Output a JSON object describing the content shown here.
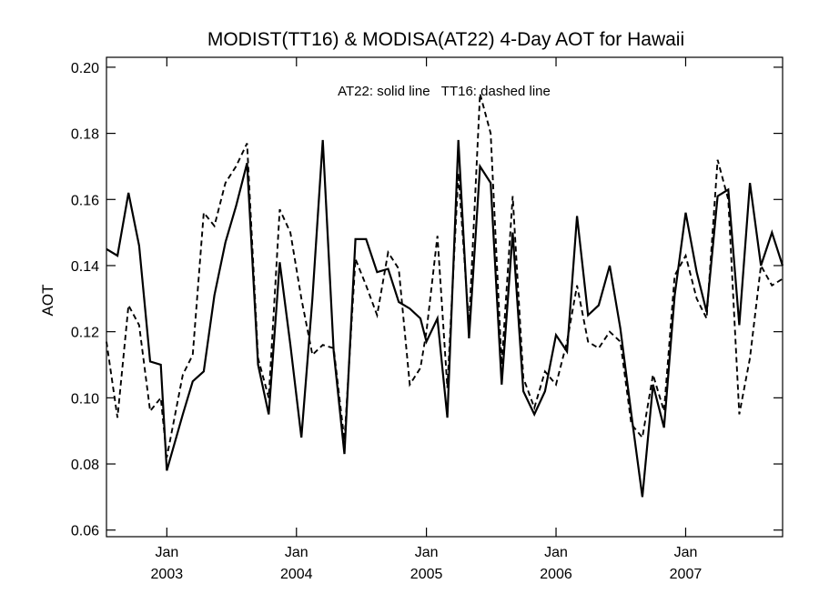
{
  "chart_data": {
    "type": "line",
    "title": "MODIST(TT16) & MODISA(AT22) 4-Day AOT for Hawaii",
    "xlabel": "",
    "ylabel": "AOT",
    "annotation": "AT22: solid line   TT16: dashed line",
    "xlim": [
      "2002-07-15",
      "2007-10-01"
    ],
    "ylim": [
      0.058,
      0.203
    ],
    "y_ticks": [
      0.06,
      0.08,
      0.1,
      0.12,
      0.14,
      0.16,
      0.18,
      0.2
    ],
    "y_tick_labels": [
      "0.06",
      "0.08",
      "0.10",
      "0.12",
      "0.14",
      "0.16",
      "0.18",
      "0.20"
    ],
    "x_ticks": [
      {
        "date": "2003-01-01",
        "month": "Jan",
        "year": "2003"
      },
      {
        "date": "2004-01-01",
        "month": "Jan",
        "year": "2004"
      },
      {
        "date": "2005-01-01",
        "month": "Jan",
        "year": "2005"
      },
      {
        "date": "2006-01-01",
        "month": "Jan",
        "year": "2006"
      },
      {
        "date": "2007-01-01",
        "month": "Jan",
        "year": "2007"
      }
    ],
    "grid": false,
    "series": [
      {
        "style": "solid",
        "x": [
          "2002-07-15",
          "2002-08-15",
          "2002-09-15",
          "2002-10-15",
          "2002-11-15",
          "2002-12-15",
          "2003-01-01",
          "2003-02-15",
          "2003-03-15",
          "2003-04-15",
          "2003-05-15",
          "2003-06-15",
          "2003-07-15",
          "2003-08-15",
          "2003-09-15",
          "2003-10-15",
          "2003-11-15",
          "2003-12-15",
          "2004-01-15",
          "2004-02-15",
          "2004-03-15",
          "2004-04-15",
          "2004-05-15",
          "2004-06-15",
          "2004-07-15",
          "2004-08-15",
          "2004-09-15",
          "2004-10-15",
          "2004-11-15",
          "2004-12-15",
          "2005-01-01",
          "2005-02-01",
          "2005-03-01",
          "2005-04-01",
          "2005-05-01",
          "2005-06-01",
          "2005-07-01",
          "2005-08-01",
          "2005-09-01",
          "2005-10-01",
          "2005-11-01",
          "2005-12-01",
          "2006-01-01",
          "2006-02-01",
          "2006-03-01",
          "2006-04-01",
          "2006-05-01",
          "2006-06-01",
          "2006-07-01",
          "2006-08-01",
          "2006-09-01",
          "2006-10-01",
          "2006-11-01",
          "2006-12-01",
          "2007-01-01",
          "2007-02-01",
          "2007-03-01",
          "2007-04-01",
          "2007-05-01",
          "2007-06-01",
          "2007-07-01",
          "2007-08-01",
          "2007-09-01",
          "2007-10-01"
        ],
        "y": [
          0.145,
          0.143,
          0.162,
          0.146,
          0.111,
          0.11,
          0.078,
          0.095,
          0.105,
          0.108,
          0.131,
          0.147,
          0.158,
          0.171,
          0.11,
          0.095,
          0.141,
          0.116,
          0.088,
          0.13,
          0.178,
          0.114,
          0.083,
          0.148,
          0.148,
          0.138,
          0.139,
          0.129,
          0.127,
          0.124,
          0.117,
          0.124,
          0.094,
          0.178,
          0.118,
          0.17,
          0.165,
          0.104,
          0.15,
          0.102,
          0.095,
          0.102,
          0.119,
          0.114,
          0.155,
          0.125,
          0.128,
          0.14,
          0.121,
          0.095,
          0.07,
          0.104,
          0.091,
          0.131,
          0.156,
          0.138,
          0.126,
          0.161,
          0.163,
          0.122,
          0.165,
          0.14,
          0.15,
          0.14
        ]
      },
      {
        "style": "dashed",
        "x": [
          "2002-07-15",
          "2002-08-15",
          "2002-09-15",
          "2002-10-15",
          "2002-11-15",
          "2002-12-15",
          "2003-01-01",
          "2003-02-15",
          "2003-03-15",
          "2003-04-15",
          "2003-05-15",
          "2003-06-15",
          "2003-07-15",
          "2003-08-15",
          "2003-09-15",
          "2003-10-15",
          "2003-11-15",
          "2003-12-15",
          "2004-01-15",
          "2004-02-15",
          "2004-03-15",
          "2004-04-15",
          "2004-05-15",
          "2004-06-15",
          "2004-07-15",
          "2004-08-15",
          "2004-09-15",
          "2004-10-15",
          "2004-11-15",
          "2004-12-15",
          "2005-01-01",
          "2005-02-01",
          "2005-03-01",
          "2005-04-01",
          "2005-05-01",
          "2005-06-01",
          "2005-07-01",
          "2005-08-01",
          "2005-09-01",
          "2005-10-01",
          "2005-11-01",
          "2005-12-01",
          "2006-01-01",
          "2006-02-01",
          "2006-03-01",
          "2006-04-01",
          "2006-05-01",
          "2006-06-01",
          "2006-07-01",
          "2006-08-01",
          "2006-09-01",
          "2006-10-01",
          "2006-11-01",
          "2006-12-01",
          "2007-01-01",
          "2007-02-01",
          "2007-03-01",
          "2007-04-01",
          "2007-05-01",
          "2007-06-01",
          "2007-07-01",
          "2007-08-01",
          "2007-09-01",
          "2007-10-01"
        ],
        "y": [
          0.117,
          0.094,
          0.128,
          0.122,
          0.096,
          0.1,
          0.082,
          0.107,
          0.113,
          0.156,
          0.152,
          0.165,
          0.17,
          0.177,
          0.112,
          0.1,
          0.157,
          0.15,
          0.13,
          0.113,
          0.116,
          0.115,
          0.087,
          0.142,
          0.134,
          0.125,
          0.144,
          0.139,
          0.104,
          0.109,
          0.12,
          0.149,
          0.103,
          0.168,
          0.122,
          0.192,
          0.18,
          0.11,
          0.161,
          0.106,
          0.097,
          0.108,
          0.104,
          0.117,
          0.134,
          0.117,
          0.115,
          0.12,
          0.117,
          0.092,
          0.088,
          0.107,
          0.096,
          0.137,
          0.143,
          0.13,
          0.124,
          0.172,
          0.16,
          0.095,
          0.112,
          0.14,
          0.134,
          0.136
        ]
      }
    ]
  }
}
